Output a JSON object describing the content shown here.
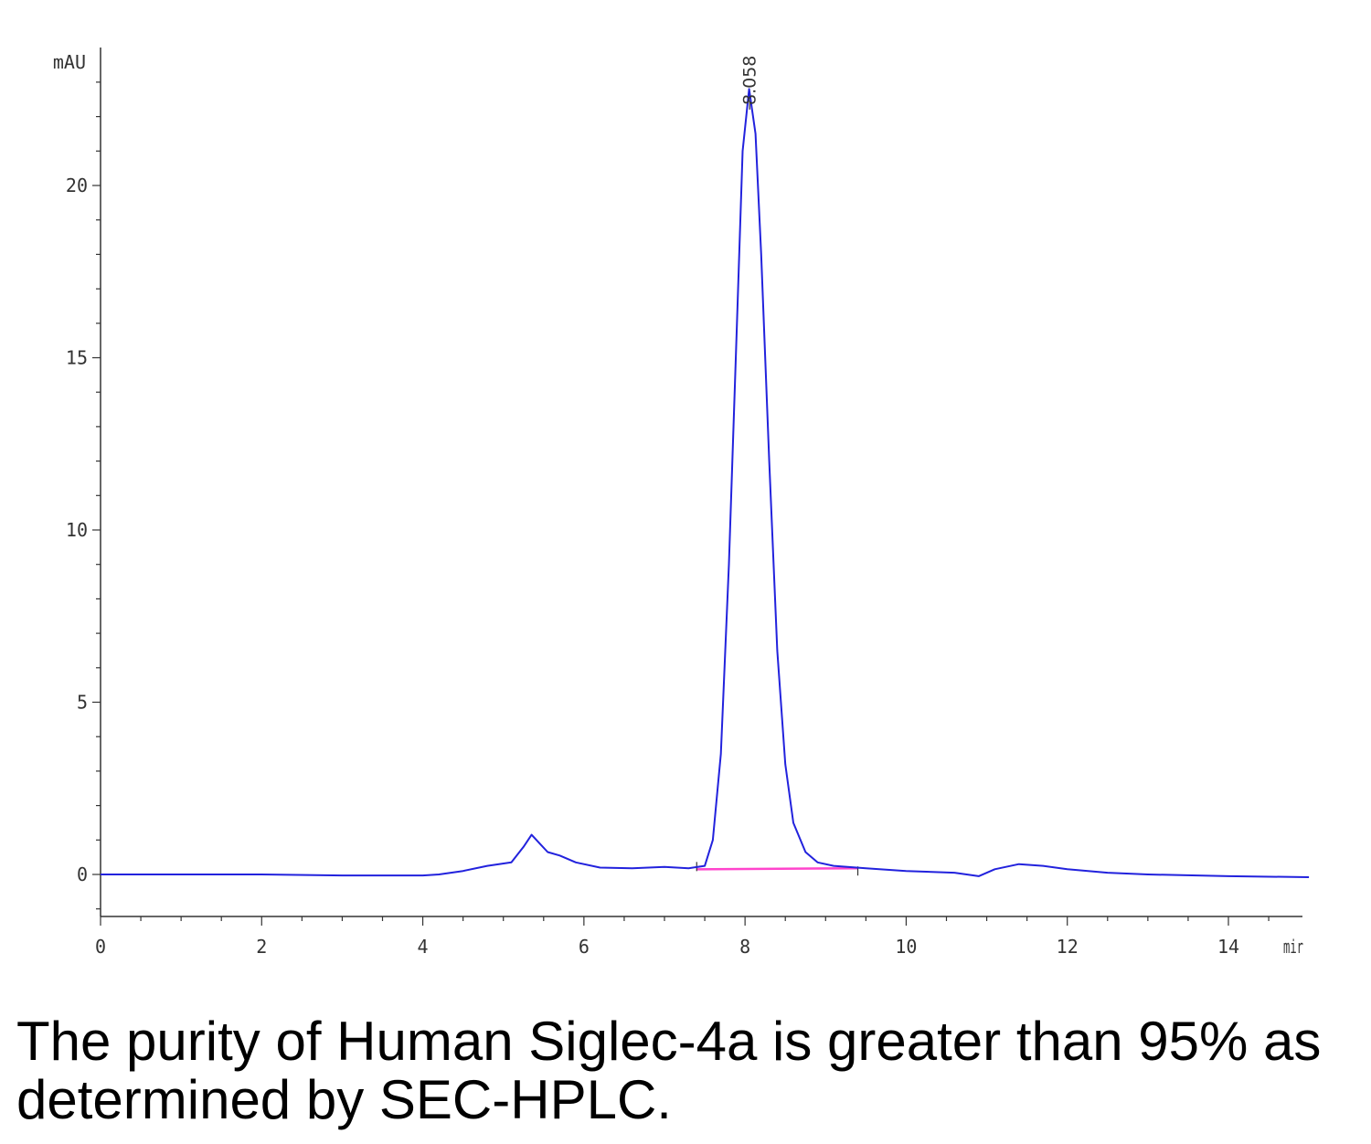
{
  "chart_data": {
    "type": "line",
    "title": "",
    "ylabel": "mAU",
    "xlabel": "min",
    "xlim": [
      0,
      15
    ],
    "ylim": [
      -1.2,
      24
    ],
    "x_ticks": [
      0,
      2,
      4,
      6,
      8,
      10,
      12,
      14
    ],
    "y_ticks": [
      0,
      5,
      10,
      15,
      20
    ],
    "grid": false,
    "legend": "none",
    "series": [
      {
        "color": "#2222dd",
        "points": [
          [
            0,
            0
          ],
          [
            1,
            0
          ],
          [
            2,
            0
          ],
          [
            3,
            -0.03
          ],
          [
            4,
            -0.03
          ],
          [
            4.2,
            0
          ],
          [
            4.5,
            0.1
          ],
          [
            4.8,
            0.25
          ],
          [
            5.1,
            0.35
          ],
          [
            5.25,
            0.8
          ],
          [
            5.35,
            1.15
          ],
          [
            5.45,
            0.9
          ],
          [
            5.55,
            0.65
          ],
          [
            5.7,
            0.55
          ],
          [
            5.9,
            0.35
          ],
          [
            6.2,
            0.2
          ],
          [
            6.6,
            0.18
          ],
          [
            7.0,
            0.22
          ],
          [
            7.3,
            0.18
          ],
          [
            7.5,
            0.25
          ],
          [
            7.6,
            1.0
          ],
          [
            7.7,
            3.5
          ],
          [
            7.8,
            9.0
          ],
          [
            7.9,
            16.0
          ],
          [
            7.97,
            21.0
          ],
          [
            8.05,
            22.8
          ],
          [
            8.13,
            21.5
          ],
          [
            8.2,
            18.0
          ],
          [
            8.3,
            12.0
          ],
          [
            8.4,
            6.5
          ],
          [
            8.5,
            3.2
          ],
          [
            8.6,
            1.5
          ],
          [
            8.75,
            0.65
          ],
          [
            8.9,
            0.35
          ],
          [
            9.1,
            0.25
          ],
          [
            9.5,
            0.18
          ],
          [
            10.0,
            0.1
          ],
          [
            10.6,
            0.05
          ],
          [
            10.9,
            -0.05
          ],
          [
            11.1,
            0.15
          ],
          [
            11.4,
            0.3
          ],
          [
            11.7,
            0.25
          ],
          [
            12.0,
            0.15
          ],
          [
            12.5,
            0.05
          ],
          [
            13.0,
            0
          ],
          [
            14.0,
            -0.05
          ],
          [
            15.0,
            -0.08
          ]
        ]
      }
    ],
    "baseline": {
      "color": "#ff44cc",
      "x": [
        7.4,
        9.4
      ],
      "y": [
        0.15,
        0.18
      ]
    },
    "annotations": [
      {
        "text": "8.058",
        "x": 8.058
      }
    ]
  },
  "caption": "The purity of Human Siglec-4a is greater than 95% as determined by SEC-HPLC."
}
